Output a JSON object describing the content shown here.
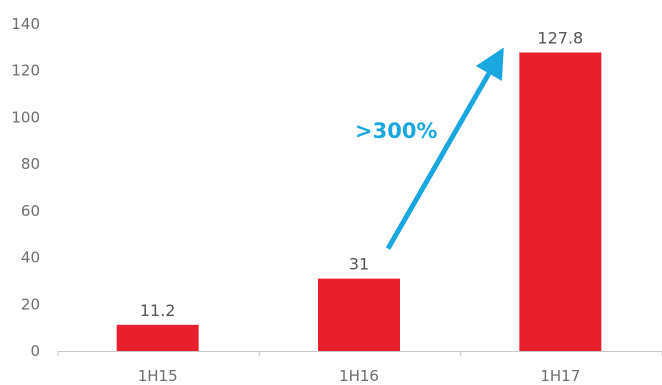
{
  "chart_data": {
    "type": "bar",
    "categories": [
      "1H15",
      "1H16",
      "1H17"
    ],
    "values": [
      11.2,
      31,
      127.8
    ],
    "data_labels": [
      "11.2",
      "31",
      "127.8"
    ],
    "ylim": [
      0,
      140
    ],
    "yticks": [
      0,
      20,
      40,
      60,
      80,
      100,
      120,
      140
    ],
    "title": "",
    "xlabel": "",
    "ylabel": "",
    "grid": false,
    "bar_color": "#e8202e",
    "annotation": {
      "text": ">300%",
      "color": "#1aa7e0",
      "type": "arrow",
      "from_category": "1H16",
      "to_category": "1H17"
    }
  }
}
